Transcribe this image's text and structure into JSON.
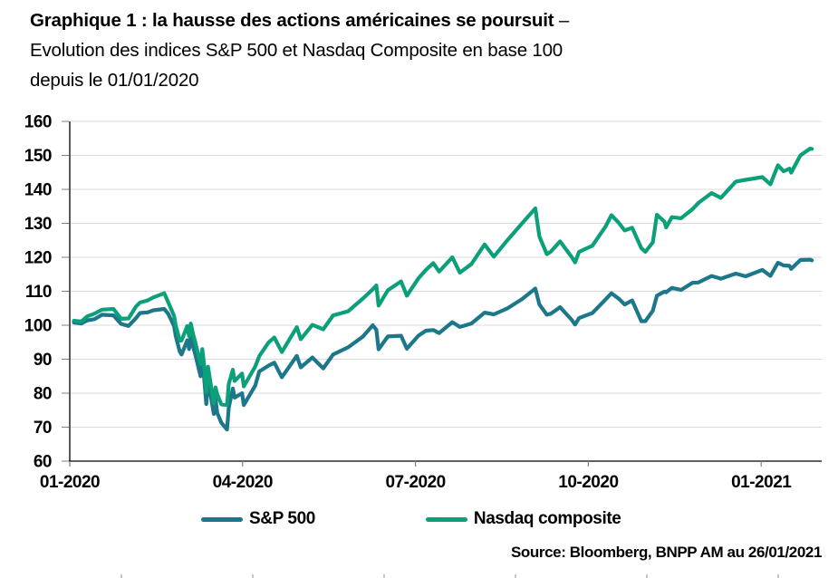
{
  "title": {
    "line1_bold": "Graphique 1 : la hausse des actions américaines se poursuit",
    "line1_tail": " –",
    "line2": "Evolution des indices S&P 500 et Nasdaq Composite en base 100",
    "line3": "depuis le 01/01/2020"
  },
  "legend": {
    "items": [
      {
        "label": "S&P 500",
        "color": "#1b7789"
      },
      {
        "label": "Nasdaq composite",
        "color": "#0ba07a"
      }
    ]
  },
  "source": "Source: Bloomberg, BNPP AM au  26/01/2021",
  "colors": {
    "sp500": "#1b7789",
    "nasdaq": "#0ba07a",
    "grid": "#d9d9d9",
    "axis": "#000000",
    "tick": "#808080"
  },
  "chart_data": {
    "type": "line",
    "title": "Evolution des indices S&P 500 et Nasdaq Composite en base 100 depuis le 01/01/2020",
    "xlabel": "",
    "ylabel": "",
    "ylim": [
      60,
      160
    ],
    "y_tick_step": 10,
    "xlim": [
      0,
      13.05
    ],
    "x_unit": "months since 01/01/2020",
    "grid": "horizontal",
    "legend_position": "bottom",
    "x_ticks": [
      {
        "pos": 0,
        "label": "01-2020"
      },
      {
        "pos": 3,
        "label": "04-2020"
      },
      {
        "pos": 6,
        "label": "07-2020"
      },
      {
        "pos": 9,
        "label": "10-2020"
      },
      {
        "pos": 12,
        "label": "01-2021"
      }
    ],
    "x": [
      0.07,
      0.2,
      0.3,
      0.43,
      0.56,
      0.76,
      0.89,
      1.02,
      1.15,
      1.22,
      1.35,
      1.45,
      1.64,
      1.71,
      1.81,
      1.84,
      1.91,
      1.94,
      2.04,
      2.07,
      2.1,
      2.14,
      2.17,
      2.27,
      2.3,
      2.33,
      2.37,
      2.4,
      2.5,
      2.53,
      2.56,
      2.63,
      2.73,
      2.76,
      2.83,
      2.86,
      2.99,
      3.02,
      3.22,
      3.29,
      3.45,
      3.55,
      3.68,
      3.94,
      4.01,
      4.21,
      4.4,
      4.57,
      4.83,
      5.09,
      5.26,
      5.32,
      5.36,
      5.52,
      5.75,
      5.85,
      6.05,
      6.18,
      6.31,
      6.41,
      6.64,
      6.77,
      6.97,
      7.2,
      7.36,
      7.59,
      7.85,
      8.08,
      8.15,
      8.28,
      8.35,
      8.51,
      8.71,
      8.77,
      8.84,
      9.07,
      9.3,
      9.4,
      9.53,
      9.63,
      9.76,
      9.92,
      9.99,
      10.12,
      10.19,
      10.32,
      10.35,
      10.45,
      10.61,
      10.81,
      10.91,
      11.14,
      11.3,
      11.56,
      11.73,
      12.02,
      12.16,
      12.29,
      12.39,
      12.49,
      12.52,
      12.68,
      12.85,
      12.88
    ],
    "series": [
      {
        "name": "S&P 500",
        "color": "#1b7789",
        "values": [
          100.8,
          100.5,
          101.4,
          101.8,
          103.1,
          102.9,
          100.4,
          99.8,
          102.1,
          103.6,
          103.8,
          104.4,
          104.8,
          103.3,
          99.8,
          96.8,
          92.2,
          91.4,
          95.6,
          93.0,
          96.9,
          93.6,
          92.0,
          85.0,
          89.2,
          84.9,
          76.8,
          83.9,
          73.9,
          78.3,
          74.2,
          71.3,
          69.3,
          75.7,
          81.4,
          78.7,
          80.0,
          76.5,
          82.3,
          86.4,
          88.1,
          89.0,
          84.7,
          91.0,
          87.6,
          90.5,
          87.3,
          91.4,
          93.5,
          96.7,
          100.0,
          98.7,
          92.9,
          96.7,
          96.9,
          93.1,
          96.9,
          98.4,
          98.6,
          97.7,
          100.9,
          99.5,
          100.5,
          103.7,
          103.2,
          104.9,
          107.7,
          110.8,
          106.1,
          103.1,
          103.4,
          105.3,
          101.6,
          100.2,
          102.1,
          103.6,
          107.6,
          109.4,
          107.8,
          106.1,
          107.3,
          101.2,
          101.2,
          104.3,
          108.7,
          109.9,
          109.7,
          111.0,
          110.4,
          112.5,
          112.6,
          114.5,
          113.7,
          115.2,
          114.4,
          116.3,
          114.5,
          118.4,
          117.6,
          117.5,
          116.6,
          119.2,
          119.3,
          119.1
        ]
      },
      {
        "name": "Nasdaq composite",
        "color": "#0ba07a",
        "values": [
          101.3,
          101.1,
          102.6,
          103.4,
          104.6,
          104.8,
          101.9,
          102.0,
          105.5,
          106.7,
          107.3,
          108.2,
          109.4,
          106.7,
          102.8,
          99.9,
          95.5,
          95.5,
          99.8,
          96.8,
          100.5,
          97.4,
          95.6,
          88.6,
          93.0,
          88.6,
          80.3,
          87.8,
          76.9,
          81.7,
          79.7,
          76.7,
          76.5,
          82.7,
          86.9,
          83.6,
          85.8,
          82.0,
          87.9,
          90.9,
          94.9,
          96.4,
          92.1,
          99.4,
          95.9,
          100.1,
          98.8,
          102.9,
          104.1,
          107.9,
          110.6,
          111.7,
          105.8,
          110.3,
          112.9,
          108.7,
          113.8,
          116.3,
          118.3,
          115.8,
          120.0,
          115.5,
          118.0,
          123.8,
          120.2,
          124.9,
          130.0,
          134.4,
          126.1,
          120.9,
          121.7,
          124.7,
          120.1,
          118.5,
          121.6,
          123.4,
          129.1,
          132.4,
          130.1,
          127.9,
          128.7,
          122.7,
          121.6,
          124.4,
          132.5,
          130.5,
          128.8,
          131.8,
          131.5,
          134.2,
          136.0,
          138.9,
          137.5,
          142.3,
          142.8,
          143.6,
          141.5,
          147.1,
          145.3,
          146.1,
          144.9,
          150.0,
          152.0,
          151.9
        ]
      }
    ]
  }
}
